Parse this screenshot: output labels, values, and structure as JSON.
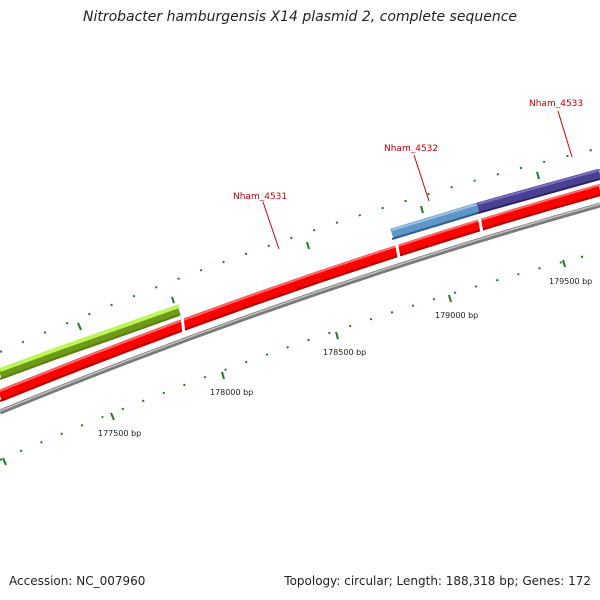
{
  "title": "Nitrobacter hamburgensis X14 plasmid 2, complete sequence",
  "footer": {
    "accession": "Accession: NC_007960",
    "summary": "Topology: circular; Length: 188,318 bp; Genes: 172"
  },
  "colors": {
    "forward_cds": "#ff0000",
    "backbone": "#8c8c8c",
    "tick": "#1f7a1f",
    "gene_label": "#cc0000",
    "gene_green": "#9aee2a",
    "gene_light_blue": "#5f95c8",
    "gene_purple": "#4a4093"
  },
  "scale_labels": [
    "177500 bp",
    "178000 bp",
    "178500 bp",
    "179000 bp",
    "179500 bp"
  ],
  "gene_labels": [
    "Nham_4531",
    "Nham_4532",
    "Nham_4533"
  ]
}
